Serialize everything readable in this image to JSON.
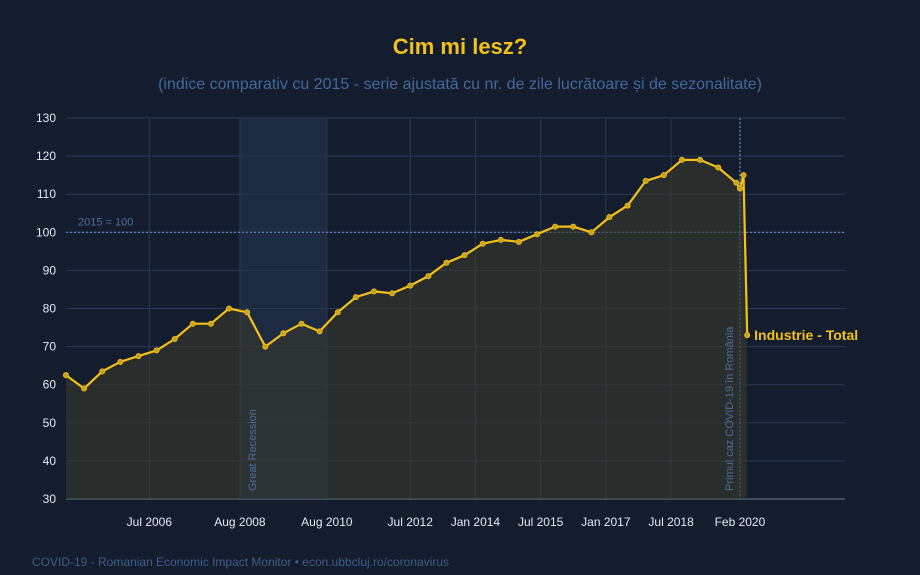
{
  "chart_data": {
    "type": "line",
    "title": "Cim mi lesz?",
    "subtitle": "(indice comparativ cu 2015 - serie ajustată cu nr. de zile lucrătoare și de sezonalitate)",
    "ylim": [
      30,
      130
    ],
    "yticks": [
      30,
      40,
      50,
      60,
      70,
      80,
      90,
      100,
      110,
      120,
      130
    ],
    "xlim": [
      "2004-08",
      "2022-07"
    ],
    "xticks": [
      {
        "date": "2006-07",
        "label": "Jul 2006"
      },
      {
        "date": "2008-08",
        "label": "Aug 2008"
      },
      {
        "date": "2010-08",
        "label": "Aug 2010"
      },
      {
        "date": "2012-07",
        "label": "Jul 2012"
      },
      {
        "date": "2014-01",
        "label": "Jan 2014"
      },
      {
        "date": "2015-07",
        "label": "Jul 2015"
      },
      {
        "date": "2017-01",
        "label": "Jan 2017"
      },
      {
        "date": "2018-07",
        "label": "Jul 2018"
      },
      {
        "date": "2020-02",
        "label": "Feb 2020"
      }
    ],
    "grid": true,
    "reference_line": {
      "y": 100,
      "label": "2015 = 100"
    },
    "shaded_region": {
      "from": "2008-08",
      "to": "2010-08",
      "label": "Great Recession"
    },
    "vertical_marker": {
      "date": "2020-02",
      "label": "Primul caz COVID-19 în România"
    },
    "series": [
      {
        "name": "Industrie - Total",
        "x": [
          "2004-08",
          "2005-01",
          "2005-06",
          "2005-11",
          "2006-04",
          "2006-09",
          "2007-02",
          "2007-07",
          "2007-12",
          "2008-05",
          "2008-10",
          "2009-03",
          "2009-08",
          "2010-01",
          "2010-06",
          "2010-11",
          "2011-04",
          "2011-09",
          "2012-02",
          "2012-07",
          "2012-12",
          "2013-05",
          "2013-10",
          "2014-03",
          "2014-08",
          "2015-01",
          "2015-06",
          "2015-11",
          "2016-04",
          "2016-09",
          "2017-02",
          "2017-07",
          "2017-12",
          "2018-05",
          "2018-10",
          "2019-03",
          "2019-08",
          "2020-01",
          "2020-02",
          "2020-03",
          "2020-04"
        ],
        "values": [
          62.5,
          59,
          63.5,
          66,
          67.5,
          69,
          72,
          76,
          76,
          80,
          79,
          70,
          73.5,
          76,
          74,
          79,
          83,
          84.5,
          84,
          86,
          88.5,
          92,
          94,
          97,
          98,
          97.5,
          99.5,
          101.5,
          101.5,
          100,
          104,
          107,
          113.5,
          115,
          119,
          119,
          117,
          113,
          111.5,
          115,
          73
        ]
      }
    ]
  },
  "footer": "COVID-19 - Romanian Economic Impact Monitor • econ.ubbcluj.ro/coronavirus",
  "colors": {
    "background": "#141d2e",
    "line": "#f2c11a",
    "grid": "#2b3a52",
    "annotation": "#4a6f9e"
  }
}
